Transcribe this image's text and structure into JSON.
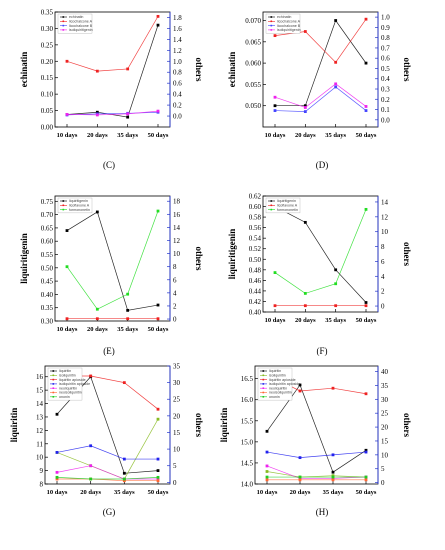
{
  "chart_data": [
    {
      "type": "line",
      "panel_label": "(C)",
      "x": [
        "10 days",
        "20 days",
        "35 days",
        "50 days"
      ],
      "ylabel_left": "echinatin",
      "ylabel_right": "others",
      "ylim_left": [
        0.0,
        0.35
      ],
      "yticks_left": [
        "0.00",
        "0.05",
        "0.10",
        "0.15",
        "0.20",
        "0.25",
        "0.30",
        "0.35"
      ],
      "ylim_right": [
        -0.2,
        1.9
      ],
      "yticks_right": [
        "0.0",
        "0.2",
        "0.4",
        "0.6",
        "0.8",
        "1.0",
        "1.2",
        "1.4",
        "1.6",
        "1.8"
      ],
      "series": [
        {
          "name": "echinatin",
          "axis": "left",
          "color": "#000000",
          "values": [
            0.038,
            0.045,
            0.03,
            0.31
          ]
        },
        {
          "name": "licochalcone A",
          "axis": "right",
          "color": "#ee2222",
          "values": [
            1.0,
            0.82,
            0.86,
            1.82
          ]
        },
        {
          "name": "licochalcone B",
          "axis": "right",
          "color": "#4444ff",
          "values": [
            0.02,
            0.04,
            0.05,
            0.07
          ]
        },
        {
          "name": "isoliquiritigenin",
          "axis": "right",
          "color": "#ee22ee",
          "values": [
            0.03,
            0.02,
            0.04,
            0.09
          ]
        }
      ]
    },
    {
      "type": "line",
      "panel_label": "(D)",
      "x": [
        "10 days",
        "20 days",
        "35 days",
        "50 days"
      ],
      "ylabel_left": "echinatin",
      "ylabel_right": "others",
      "ylim_left": [
        0.045,
        0.072
      ],
      "yticks_left": [
        "0.050",
        "0.055",
        "0.060",
        "0.065",
        "0.070"
      ],
      "ylim_right": [
        -0.07,
        1.05
      ],
      "yticks_right": [
        "0.0",
        "0.1",
        "0.2",
        "0.3",
        "0.4",
        "0.5",
        "0.6",
        "0.7",
        "0.8",
        "0.9",
        "1.0"
      ],
      "series": [
        {
          "name": "echinatin",
          "axis": "left",
          "color": "#000000",
          "values": [
            0.05,
            0.05,
            0.07,
            0.06
          ]
        },
        {
          "name": "licochalcone A",
          "axis": "right",
          "color": "#ee2222",
          "values": [
            0.82,
            0.86,
            0.56,
            0.98
          ]
        },
        {
          "name": "licochalcone B",
          "axis": "right",
          "color": "#4444ff",
          "values": [
            0.09,
            0.08,
            0.32,
            0.09
          ]
        },
        {
          "name": "isoliquiritigenin",
          "axis": "right",
          "color": "#ee22ee",
          "values": [
            0.22,
            0.12,
            0.35,
            0.13
          ]
        }
      ]
    },
    {
      "type": "line",
      "panel_label": "(E)",
      "x": [
        "10 days",
        "20 days",
        "35 days",
        "50 days"
      ],
      "ylabel_left": "liquiritigenin",
      "ylabel_right": "others",
      "ylim_left": [
        0.3,
        0.77
      ],
      "yticks_left": [
        "0.30",
        "0.35",
        "0.40",
        "0.45",
        "0.50",
        "0.55",
        "0.60",
        "0.65",
        "0.70",
        "0.75"
      ],
      "ylim_right": [
        -0.3,
        18.8
      ],
      "yticks_right": [
        "0",
        "2",
        "4",
        "6",
        "8",
        "10",
        "12",
        "14",
        "16",
        "18"
      ],
      "series": [
        {
          "name": "liquiritigenin",
          "axis": "left",
          "color": "#000000",
          "values": [
            0.64,
            0.71,
            0.34,
            0.36
          ]
        },
        {
          "name": "licoflavone A",
          "axis": "right",
          "color": "#ee2222",
          "values": [
            0.05,
            0.05,
            0.05,
            0.05
          ]
        },
        {
          "name": "formononetin",
          "axis": "right",
          "color": "#22dd22",
          "values": [
            8.0,
            1.5,
            3.8,
            16.5
          ]
        }
      ]
    },
    {
      "type": "line",
      "panel_label": "(F)",
      "x": [
        "10 days",
        "20 days",
        "35 days",
        "50 days"
      ],
      "ylabel_left": "liquiritigenin",
      "ylabel_right": "others",
      "ylim_left": [
        0.4,
        0.62
      ],
      "yticks_left": [
        "0.40",
        "0.42",
        "0.44",
        "0.46",
        "0.48",
        "0.50",
        "0.52",
        "0.54",
        "0.56",
        "0.58",
        "0.60",
        "0.62"
      ],
      "ylim_right": [
        -0.8,
        14.8
      ],
      "yticks_right": [
        "0",
        "2",
        "4",
        "6",
        "8",
        "10",
        "12",
        "14"
      ],
      "series": [
        {
          "name": "liquiritigenin",
          "axis": "left",
          "color": "#000000",
          "values": [
            0.6,
            0.57,
            0.48,
            0.418
          ]
        },
        {
          "name": "licoflavone A",
          "axis": "right",
          "color": "#ee2222",
          "values": [
            0.05,
            0.05,
            0.05,
            0.05
          ]
        },
        {
          "name": "formononetin",
          "axis": "right",
          "color": "#22dd22",
          "values": [
            4.5,
            1.7,
            3.0,
            13.0
          ]
        }
      ]
    },
    {
      "type": "line",
      "panel_label": "(G)",
      "x": [
        "10 days",
        "20 days",
        "35 days",
        "50 days"
      ],
      "ylabel_left": "liquiritin",
      "ylabel_right": "others",
      "ylim_left": [
        8,
        16.8
      ],
      "yticks_left": [
        "8",
        "9",
        "10",
        "11",
        "12",
        "13",
        "14",
        "15",
        "16"
      ],
      "ylim_right": [
        -0.5,
        35
      ],
      "yticks_right": [
        "0",
        "5",
        "10",
        "15",
        "20",
        "25",
        "30",
        "35"
      ],
      "series": [
        {
          "name": "liquiritin",
          "axis": "left",
          "color": "#000000",
          "values": [
            13.2,
            16.0,
            8.8,
            9.0
          ]
        },
        {
          "name": "isoliquiritin",
          "axis": "right",
          "color": "#88bb22",
          "values": [
            9.0,
            5.0,
            1.0,
            19.0
          ]
        },
        {
          "name": "liquiritin apioside",
          "axis": "right",
          "color": "#ee2222",
          "values": [
            32.0,
            32.0,
            30.0,
            22.0
          ]
        },
        {
          "name": "isoliquiritin apioside",
          "axis": "right",
          "color": "#2222ee",
          "values": [
            9.0,
            11.0,
            7.0,
            7.0
          ]
        },
        {
          "name": "neoliquiritin",
          "axis": "right",
          "color": "#ee22ee",
          "values": [
            3.0,
            5.0,
            1.0,
            1.0
          ]
        },
        {
          "name": "neoisoliquiritin",
          "axis": "right",
          "color": "#ff6633",
          "values": [
            1.0,
            1.0,
            0.5,
            0.5
          ]
        },
        {
          "name": "ononin",
          "axis": "right",
          "color": "#22cc22",
          "values": [
            1.5,
            1.0,
            1.0,
            1.5
          ]
        }
      ]
    },
    {
      "type": "line",
      "panel_label": "(H)",
      "x": [
        "10 days",
        "20 days",
        "35 days",
        "50 days"
      ],
      "ylabel_left": "liquiritin",
      "ylabel_right": "others",
      "ylim_left": [
        14.0,
        16.8
      ],
      "yticks_left": [
        "14.0",
        "14.5",
        "15.0",
        "15.5",
        "16.0",
        "16.5"
      ],
      "ylim_right": [
        -0.5,
        42
      ],
      "yticks_right": [
        "0",
        "5",
        "10",
        "15",
        "20",
        "25",
        "30",
        "35",
        "40"
      ],
      "series": [
        {
          "name": "liquiritin",
          "axis": "left",
          "color": "#000000",
          "values": [
            15.25,
            16.35,
            14.28,
            14.8
          ]
        },
        {
          "name": "isoliquiritin",
          "axis": "right",
          "color": "#88bb22",
          "values": [
            4.0,
            2.0,
            2.5,
            2.0
          ]
        },
        {
          "name": "liquiritin apioside",
          "axis": "right",
          "color": "#ee2222",
          "values": [
            39.0,
            33.0,
            34.0,
            32.0
          ]
        },
        {
          "name": "isoliquiritin apioside",
          "axis": "right",
          "color": "#2222ee",
          "values": [
            11.0,
            9.0,
            10.0,
            11.0
          ]
        },
        {
          "name": "neoliquiritin",
          "axis": "right",
          "color": "#ee22ee",
          "values": [
            6.0,
            1.5,
            1.5,
            2.0
          ]
        },
        {
          "name": "neoisoliquiritin",
          "axis": "right",
          "color": "#ff6633",
          "values": [
            1.0,
            1.0,
            1.0,
            1.0
          ]
        },
        {
          "name": "ononin",
          "axis": "right",
          "color": "#22cc22",
          "values": [
            2.0,
            2.0,
            2.0,
            2.0
          ]
        }
      ]
    }
  ]
}
